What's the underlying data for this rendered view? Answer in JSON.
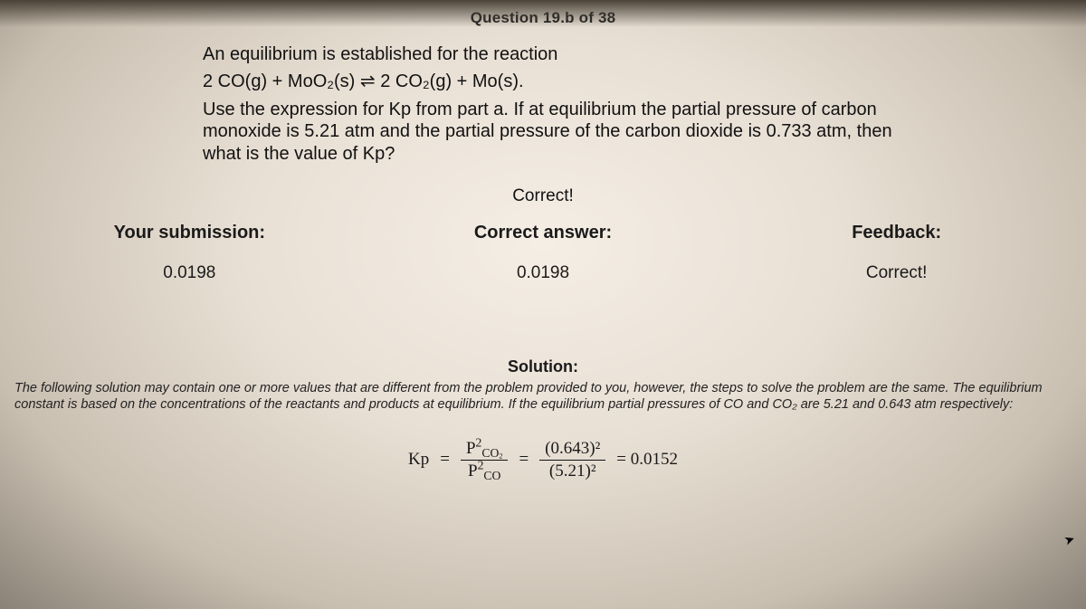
{
  "header": {
    "title": "Question 19.b of 38"
  },
  "prompt": {
    "line1": "An equilibrium is established for the reaction",
    "reaction": "2 CO(g) + MoO₂(s) ⇌ 2 CO₂(g) + Mo(s).",
    "line2": "Use the expression for Kp from part a. If at equilibrium the partial pressure of carbon monoxide is 5.21 atm and the partial pressure of the carbon dioxide is 0.733 atm, then what is the value of Kp?"
  },
  "status": {
    "correct": "Correct!"
  },
  "columns": {
    "submission": {
      "label": "Your submission:",
      "value": "0.0198"
    },
    "answer": {
      "label": "Correct answer:",
      "value": "0.0198"
    },
    "feedback": {
      "label": "Feedback:",
      "value": "Correct!"
    }
  },
  "solution": {
    "heading": "Solution:",
    "disclaimer": "The following solution may contain one or more values that are different from the problem provided to you, however, the steps to solve the problem are the same. The equilibrium constant is based on the concentrations of the reactants and products at equilibrium. If the equilibrium partial pressures of CO and CO₂ are 5.21 and 0.643 atm respectively:",
    "formula": {
      "lhs": "Kp",
      "eq": "=",
      "frac1_num_base": "P",
      "frac1_num_sub": "CO",
      "frac1_num_subsub": "2",
      "frac1_den_base": "P",
      "frac1_den_sub": "CO",
      "frac2_num": "(0.643)²",
      "frac2_den": "(5.21)²",
      "result": "= 0.0152"
    }
  },
  "style": {
    "text_color": "#1a1a1a",
    "bg_center": "#f5eee5",
    "bg_edge": "#8a8277"
  }
}
